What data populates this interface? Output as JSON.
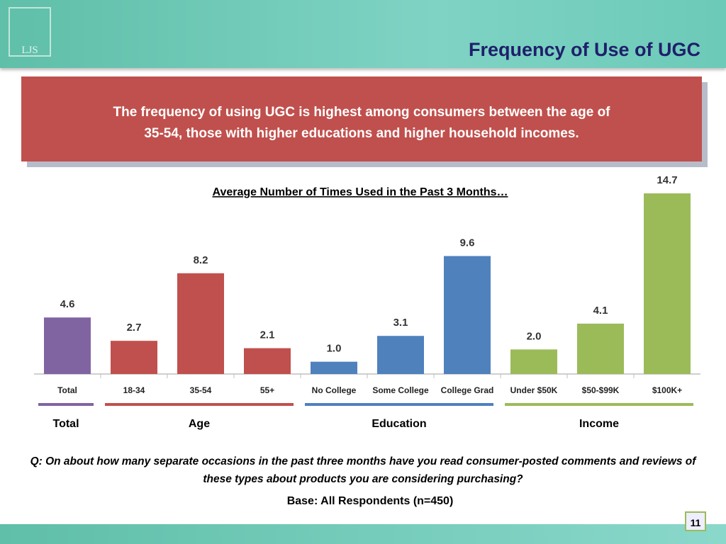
{
  "slide": {
    "logo": "LJS",
    "title": "Frequency of Use of UGC",
    "callout": [
      "The frequency of using UGC is highest among consumers between the age of",
      "35-54, those with higher educations and higher household incomes."
    ],
    "question": "Q: On about how many separate occasions in the past three months have you read consumer-posted comments and reviews of these types about products you are considering purchasing?",
    "base": "Base: All Respondents (n=450)",
    "page": "11"
  },
  "chart_data": {
    "type": "bar",
    "title": "Average Number of Times Used in the Past 3 Months…",
    "series": [
      {
        "name": "Total",
        "color": "#8064a2",
        "categories": [
          "Total"
        ],
        "values": [
          4.6
        ],
        "value_labels": [
          "4.6"
        ]
      },
      {
        "name": "Age",
        "color": "#c0504d",
        "categories": [
          "18-34",
          "35-54",
          "55+"
        ],
        "values": [
          2.7,
          8.2,
          2.1
        ],
        "value_labels": [
          "2.7",
          "8.2",
          "2.1"
        ]
      },
      {
        "name": "Education",
        "color": "#4f81bd",
        "categories": [
          "No College",
          "Some College",
          "College Grad"
        ],
        "values": [
          1.0,
          3.1,
          9.6
        ],
        "value_labels": [
          "1.0",
          "3.1",
          "9.6"
        ]
      },
      {
        "name": "Income",
        "color": "#9bbb59",
        "categories": [
          "Under $50K",
          "$50-$99K",
          "$100K+"
        ],
        "values": [
          2.0,
          4.1,
          14.7
        ],
        "value_labels": [
          "2.0",
          "4.1",
          "14.7"
        ]
      }
    ]
  }
}
